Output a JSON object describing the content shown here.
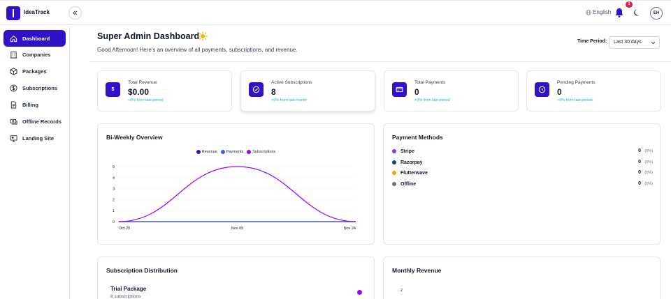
{
  "app": {
    "brand": "IdeaTrack"
  },
  "topbar": {
    "language": "English",
    "notification_count": "1",
    "avatar_initials": "EH"
  },
  "sidebar": {
    "items": [
      {
        "label": "Dashboard",
        "icon": "home-icon",
        "active": true
      },
      {
        "label": "Companies",
        "icon": "building-icon"
      },
      {
        "label": "Packages",
        "icon": "package-icon"
      },
      {
        "label": "Subscriptions",
        "icon": "dollar-circle-icon"
      },
      {
        "label": "Billing",
        "icon": "document-icon"
      },
      {
        "label": "Offline Records",
        "icon": "cash-icon"
      },
      {
        "label": "Landing Site",
        "icon": "monitor-icon"
      }
    ]
  },
  "header": {
    "title": "Super Admin Dashboard",
    "greeting": "Good Afternoon! Here's an overview of all payments, subscriptions, and revenue.",
    "time_period_label": "Time Period:",
    "time_period_value": "Last 30 days"
  },
  "stats": [
    {
      "label": "Total Revenue",
      "value": "$0.00",
      "change": "+0% from last period",
      "icon": "dollar-icon"
    },
    {
      "label": "Active Subscriptions",
      "value": "8",
      "change": "+0% from last month",
      "icon": "check-circle-icon"
    },
    {
      "label": "Total Payments",
      "value": "0",
      "change": "+0% from last period",
      "icon": "credit-card-icon"
    },
    {
      "label": "Pending Payments",
      "value": "0",
      "change": "+0% from last period",
      "icon": "clock-icon"
    }
  ],
  "biweekly": {
    "title": "Bi-Weekly Overview"
  },
  "chart_data": {
    "type": "line",
    "x": [
      "Oct 25",
      "Nov 09",
      "Nov 24"
    ],
    "ylim": [
      0,
      5
    ],
    "yticks": [
      "0",
      "1",
      "2",
      "3",
      "4",
      "5"
    ],
    "series": [
      {
        "name": "Revenue",
        "color": "#2e13c9",
        "values": [
          0,
          0,
          0
        ]
      },
      {
        "name": "Payments",
        "color": "#3b5bdb",
        "values": [
          0,
          0,
          0
        ]
      },
      {
        "name": "Subscriptions",
        "color": "#9d00ff",
        "values": [
          0,
          5,
          0
        ]
      }
    ]
  },
  "payment_methods": {
    "title": "Payment Methods",
    "items": [
      {
        "name": "Stripe",
        "count": "0",
        "pct": "(0%)",
        "color": "#7c3aed"
      },
      {
        "name": "Razorpay",
        "count": "0",
        "pct": "(0%)",
        "color": "#0c4a6e"
      },
      {
        "name": "Flutterwave",
        "count": "0",
        "pct": "(0%)",
        "color": "#f59e0b"
      },
      {
        "name": "Offline",
        "count": "0",
        "pct": "(0%)",
        "color": "#6b7280"
      }
    ]
  },
  "subscription_distribution": {
    "title": "Subscription Distribution",
    "package_name": "Trial Package",
    "package_count": "8 subscriptions"
  },
  "monthly_revenue": {
    "title": "Monthly Revenue",
    "first_tick": "2"
  }
}
